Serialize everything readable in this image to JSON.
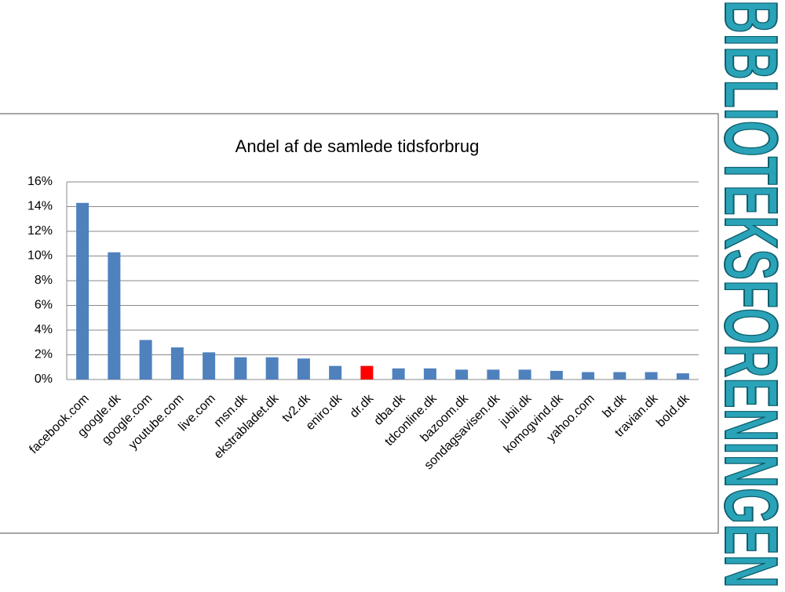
{
  "brand": "BIBLIOTEKSFORENINGEN",
  "chart_data": {
    "type": "bar",
    "title": "Andel af de samlede tidsforbrug",
    "categories": [
      "facebook.com",
      "google.dk",
      "google.com",
      "youtube.com",
      "live.com",
      "msn.dk",
      "ekstrabladet.dk",
      "tv2.dk",
      "eniro.dk",
      "dr.dk",
      "dba.dk",
      "tdconline.dk",
      "bazoom.dk",
      "sondagsavisen.dk",
      "jubii.dk",
      "komogvind.dk",
      "yahoo.com",
      "bt.dk",
      "travian.dk",
      "bold.dk"
    ],
    "values": [
      14.3,
      10.3,
      3.2,
      2.6,
      2.2,
      1.8,
      1.8,
      1.7,
      1.1,
      1.1,
      0.9,
      0.9,
      0.8,
      0.8,
      0.8,
      0.7,
      0.6,
      0.6,
      0.6,
      0.5
    ],
    "colors": [
      "#4f81bd",
      "#4f81bd",
      "#4f81bd",
      "#4f81bd",
      "#4f81bd",
      "#4f81bd",
      "#4f81bd",
      "#4f81bd",
      "#4f81bd",
      "#ff0000",
      "#4f81bd",
      "#4f81bd",
      "#4f81bd",
      "#4f81bd",
      "#4f81bd",
      "#4f81bd",
      "#4f81bd",
      "#4f81bd",
      "#4f81bd",
      "#4f81bd"
    ],
    "ylim": [
      0,
      16
    ],
    "yticks": [
      {
        "value": 0,
        "label": "0%"
      },
      {
        "value": 2,
        "label": "2%"
      },
      {
        "value": 4,
        "label": "4%"
      },
      {
        "value": 6,
        "label": "6%"
      },
      {
        "value": 8,
        "label": "8%"
      },
      {
        "value": 10,
        "label": "10%"
      },
      {
        "value": 12,
        "label": "12%"
      },
      {
        "value": 14,
        "label": "14%"
      },
      {
        "value": 16,
        "label": "16%"
      }
    ],
    "grid": true
  }
}
